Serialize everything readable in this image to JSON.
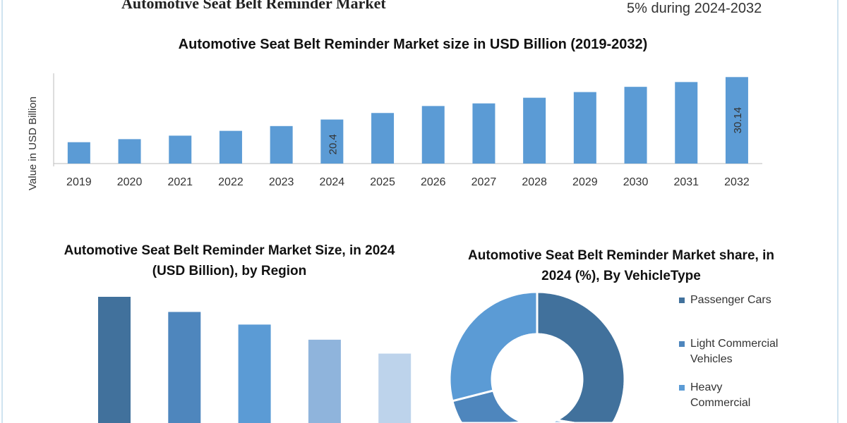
{
  "header": {
    "title": "Automotive Seat Belt Reminder Market",
    "cagr_text": "5% during 2024-2032"
  },
  "chart_data": [
    {
      "type": "bar",
      "title": "Automotive Seat Belt Reminder Market size in USD Billion (2019-2032)",
      "xlabel": "",
      "ylabel": "Value in USD Billion",
      "categories": [
        "2019",
        "2020",
        "2021",
        "2022",
        "2023",
        "2024",
        "2025",
        "2026",
        "2027",
        "2028",
        "2029",
        "2030",
        "2031",
        "2032"
      ],
      "values": [
        15.2,
        15.9,
        16.7,
        17.8,
        18.9,
        20.4,
        21.9,
        23.5,
        24.1,
        25.4,
        26.7,
        27.9,
        29.0,
        30.14
      ],
      "data_labels": {
        "2024": "20.4",
        "2032": "30.14"
      },
      "ylim": [
        10.3,
        31
      ],
      "color": "#5b9bd5",
      "grid": false
    },
    {
      "type": "bar",
      "title": "Automotive Seat Belt Reminder Market Size, in 2024 (USD Billion), by Region",
      "relative_values": [
        1.0,
        0.88,
        0.78,
        0.66,
        0.55
      ],
      "colors": [
        "#41719c",
        "#4e86bd",
        "#5b9bd5",
        "#8fb4dc",
        "#bdd3eb"
      ],
      "grid": false
    },
    {
      "type": "pie",
      "title": "Automotive Seat Belt Reminder Market share, in 2024 (%), By VehicleType",
      "legend": [
        "Passenger Cars",
        "Light Commercial Vehicles",
        "Heavy Commercial"
      ],
      "legend_lines": [
        [
          "Passenger Cars"
        ],
        [
          "Light Commercial",
          "Vehicles"
        ],
        [
          "Heavy",
          "Commercial"
        ]
      ],
      "legend_colors": [
        "#41719c",
        "#4e86bd",
        "#5b9bd5"
      ],
      "slices": [
        43,
        12,
        16,
        29
      ],
      "slice_colors": [
        "#41719c",
        "#5b9bd5",
        "#4e86bd",
        "#5b9bd5"
      ],
      "legend_placement": "right"
    }
  ]
}
